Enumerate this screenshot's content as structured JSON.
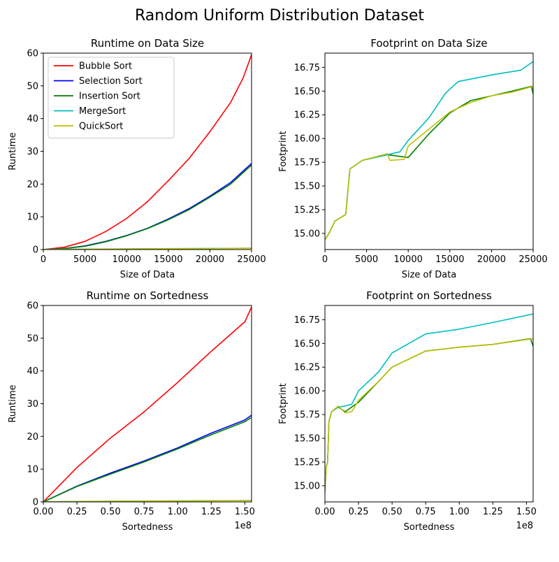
{
  "figure_title": "Random Uniform Distribution Dataset",
  "colors": {
    "Bubble Sort": "#ff0000",
    "Selection Sort": "#0000ff",
    "Insertion Sort": "#008000",
    "MergeSort": "#00bfbf",
    "QuickSort": "#bfbf00"
  },
  "chart_data": [
    {
      "type": "line",
      "title": "Runtime on Data Size",
      "xlabel": "Size of Data",
      "ylabel": "Runtime",
      "xlim": [
        0,
        25000
      ],
      "ylim": [
        0,
        60
      ],
      "xticks": [
        0,
        5000,
        10000,
        15000,
        20000,
        25000
      ],
      "xtick_labels": [
        "0",
        "5000",
        "10000",
        "15000",
        "20000",
        "25000"
      ],
      "yticks": [
        0,
        10,
        20,
        30,
        40,
        50,
        60
      ],
      "ytick_labels": [
        "0",
        "10",
        "20",
        "30",
        "40",
        "50",
        "60"
      ],
      "legend": "upper-left",
      "series": [
        {
          "name": "Bubble Sort",
          "x": [
            0,
            2500,
            5000,
            7500,
            10000,
            12500,
            15000,
            17500,
            20000,
            22500,
            24000,
            25000
          ],
          "y": [
            0.0,
            0.7,
            2.5,
            5.5,
            9.5,
            14.6,
            21.0,
            27.8,
            36.0,
            45.0,
            52.5,
            59.5
          ]
        },
        {
          "name": "Selection Sort",
          "x": [
            0,
            2500,
            5000,
            7500,
            10000,
            12500,
            15000,
            17500,
            20000,
            22500,
            24000,
            25000
          ],
          "y": [
            0.0,
            0.3,
            1.1,
            2.5,
            4.3,
            6.5,
            9.3,
            12.5,
            16.3,
            20.5,
            24.0,
            26.3
          ]
        },
        {
          "name": "Insertion Sort",
          "x": [
            0,
            2500,
            5000,
            7500,
            10000,
            12500,
            15000,
            17500,
            20000,
            22500,
            24000,
            25000
          ],
          "y": [
            0.0,
            0.3,
            1.0,
            2.4,
            4.2,
            6.4,
            9.1,
            12.2,
            16.0,
            20.0,
            23.5,
            25.8
          ]
        },
        {
          "name": "MergeSort",
          "x": [
            0,
            5000,
            10000,
            15000,
            20000,
            25000
          ],
          "y": [
            0.05,
            0.12,
            0.2,
            0.28,
            0.35,
            0.42
          ]
        },
        {
          "name": "QuickSort",
          "x": [
            0,
            5000,
            10000,
            15000,
            20000,
            25000
          ],
          "y": [
            0.03,
            0.1,
            0.18,
            0.25,
            0.32,
            0.38
          ]
        }
      ]
    },
    {
      "type": "line",
      "title": "Footprint on Data Size",
      "xlabel": "Size of Data",
      "ylabel": "Footprint",
      "xlim": [
        0,
        25000
      ],
      "ylim": [
        14.83,
        16.9
      ],
      "xticks": [
        0,
        5000,
        10000,
        15000,
        20000,
        25000
      ],
      "xtick_labels": [
        "0",
        "5000",
        "10000",
        "15000",
        "20000",
        "25000"
      ],
      "yticks": [
        15.0,
        15.25,
        15.5,
        15.75,
        16.0,
        16.25,
        16.5,
        16.75
      ],
      "ytick_labels": [
        "15.00",
        "15.25",
        "15.50",
        "15.75",
        "16.00",
        "16.25",
        "16.50",
        "16.75"
      ],
      "series": [
        {
          "name": "Insertion Sort",
          "x": [
            0,
            600,
            1200,
            2500,
            3000,
            4500,
            7500,
            10000,
            12500,
            15000,
            17500,
            20000,
            22500,
            24800,
            25000
          ],
          "y": [
            14.93,
            15.02,
            15.13,
            15.2,
            15.68,
            15.77,
            15.83,
            15.8,
            16.05,
            16.27,
            16.4,
            16.45,
            16.5,
            16.55,
            16.47
          ]
        },
        {
          "name": "MergeSort",
          "x": [
            0,
            600,
            1200,
            2500,
            3000,
            4500,
            7500,
            9000,
            10000,
            12500,
            14500,
            16000,
            20000,
            23500,
            25000
          ],
          "y": [
            14.93,
            15.02,
            15.13,
            15.2,
            15.68,
            15.77,
            15.83,
            15.86,
            15.98,
            16.22,
            16.48,
            16.6,
            16.67,
            16.72,
            16.81
          ]
        },
        {
          "name": "QuickSort",
          "x": [
            0,
            600,
            1200,
            2500,
            3000,
            4500,
            7500,
            7800,
            9500,
            10000,
            12500,
            15000,
            17500,
            20000,
            22500,
            25000
          ],
          "y": [
            14.93,
            15.02,
            15.13,
            15.2,
            15.68,
            15.77,
            15.84,
            15.77,
            15.78,
            15.92,
            16.1,
            16.28,
            16.38,
            16.45,
            16.49,
            16.55
          ]
        }
      ]
    },
    {
      "type": "line",
      "title": "Runtime on Sortedness",
      "xlabel": "Sortedness",
      "ylabel": "Runtime",
      "x_scale_label": "1e8",
      "xlim": [
        0,
        1.55
      ],
      "ylim": [
        0,
        60
      ],
      "xticks": [
        0,
        0.25,
        0.5,
        0.75,
        1.0,
        1.25,
        1.5
      ],
      "xtick_labels": [
        "0.00",
        "0.25",
        "0.50",
        "0.75",
        "1.00",
        "1.25",
        "1.50"
      ],
      "yticks": [
        0,
        10,
        20,
        30,
        40,
        50,
        60
      ],
      "ytick_labels": [
        "0",
        "10",
        "20",
        "30",
        "40",
        "50",
        "60"
      ],
      "series": [
        {
          "name": "Bubble Sort",
          "x": [
            0,
            0.25,
            0.5,
            0.75,
            1.0,
            1.25,
            1.5,
            1.55
          ],
          "y": [
            0,
            10.5,
            19.5,
            27.5,
            36.5,
            46.0,
            55.0,
            59.5
          ]
        },
        {
          "name": "Selection Sort",
          "x": [
            0,
            0.25,
            0.5,
            0.75,
            1.0,
            1.25,
            1.5,
            1.55
          ],
          "y": [
            0,
            4.8,
            8.8,
            12.5,
            16.5,
            21.0,
            25.0,
            26.5
          ]
        },
        {
          "name": "Insertion Sort",
          "x": [
            0,
            0.25,
            0.5,
            0.75,
            1.0,
            1.25,
            1.5,
            1.55
          ],
          "y": [
            0,
            4.7,
            8.5,
            12.2,
            16.2,
            20.5,
            24.5,
            25.8
          ]
        },
        {
          "name": "MergeSort",
          "x": [
            0,
            0.5,
            1.0,
            1.55
          ],
          "y": [
            0.05,
            0.2,
            0.32,
            0.42
          ]
        },
        {
          "name": "QuickSort",
          "x": [
            0,
            0.5,
            1.0,
            1.55
          ],
          "y": [
            0.03,
            0.17,
            0.28,
            0.38
          ]
        }
      ]
    },
    {
      "type": "line",
      "title": "Footprint on Sortedness",
      "xlabel": "Sortedness",
      "ylabel": "Footprint",
      "x_scale_label": "1e8",
      "xlim": [
        0,
        1.55
      ],
      "ylim": [
        14.83,
        16.9
      ],
      "xticks": [
        0,
        0.25,
        0.5,
        0.75,
        1.0,
        1.25,
        1.5
      ],
      "xtick_labels": [
        "0.00",
        "0.25",
        "0.50",
        "0.75",
        "1.00",
        "1.25",
        "1.50"
      ],
      "yticks": [
        15.0,
        15.25,
        15.5,
        15.75,
        16.0,
        16.25,
        16.5,
        16.75
      ],
      "ytick_labels": [
        "15.00",
        "15.25",
        "15.50",
        "15.75",
        "16.00",
        "16.25",
        "16.50",
        "16.75"
      ],
      "series": [
        {
          "name": "Insertion Sort",
          "x": [
            0,
            0.01,
            0.02,
            0.03,
            0.05,
            0.1,
            0.15,
            0.25,
            0.4,
            0.5,
            0.75,
            1.0,
            1.25,
            1.53,
            1.55
          ],
          "y": [
            14.93,
            15.2,
            15.25,
            15.68,
            15.78,
            15.83,
            15.78,
            15.88,
            16.1,
            16.25,
            16.42,
            16.46,
            16.49,
            16.55,
            16.47
          ]
        },
        {
          "name": "MergeSort",
          "x": [
            0,
            0.01,
            0.02,
            0.03,
            0.05,
            0.1,
            0.15,
            0.2,
            0.25,
            0.4,
            0.5,
            0.75,
            1.0,
            1.25,
            1.55
          ],
          "y": [
            14.93,
            15.2,
            15.25,
            15.68,
            15.78,
            15.83,
            15.84,
            15.86,
            16.0,
            16.2,
            16.4,
            16.6,
            16.65,
            16.72,
            16.81
          ]
        },
        {
          "name": "QuickSort",
          "x": [
            0,
            0.01,
            0.02,
            0.03,
            0.05,
            0.1,
            0.15,
            0.2,
            0.25,
            0.4,
            0.5,
            0.75,
            1.0,
            1.25,
            1.55
          ],
          "y": [
            14.93,
            15.2,
            15.25,
            15.68,
            15.78,
            15.84,
            15.77,
            15.78,
            15.9,
            16.1,
            16.25,
            16.42,
            16.46,
            16.49,
            16.55
          ]
        }
      ]
    }
  ]
}
